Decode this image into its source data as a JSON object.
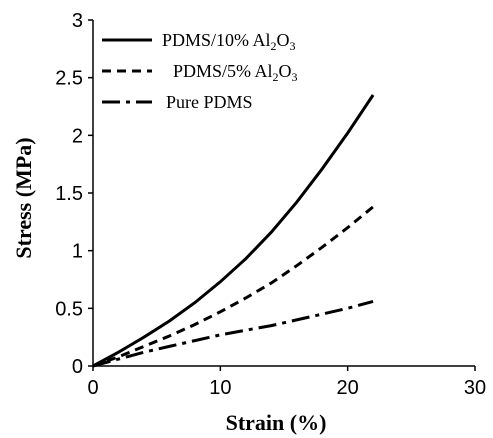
{
  "chart_data": {
    "type": "line",
    "title": "",
    "xlabel": "Strain (%)",
    "ylabel": "Stress (MPa)",
    "xlim": [
      0,
      30
    ],
    "ylim": [
      0,
      3
    ],
    "x_ticks": [
      0,
      10,
      20,
      30
    ],
    "y_ticks": [
      0,
      0.5,
      1,
      1.5,
      2,
      2.5,
      3
    ],
    "x_tick_labels": [
      "0",
      "10",
      "20",
      "30"
    ],
    "y_tick_labels": [
      "0",
      "0.5",
      "1",
      "1.5",
      "2",
      "2.5",
      "3"
    ],
    "grid": false,
    "legend_position": "top-left",
    "series": [
      {
        "name": "PDMS/10% Al2O3",
        "legend": {
          "prefix": "PDMS/10% Al",
          "sub1": "2",
          "mid": "O",
          "sub2": "3"
        },
        "style": "solid",
        "color": "#000000",
        "x": [
          0,
          2,
          4,
          6,
          8,
          10,
          12,
          14,
          16,
          18,
          20,
          22
        ],
        "y": [
          0,
          0.12,
          0.25,
          0.39,
          0.55,
          0.73,
          0.93,
          1.16,
          1.42,
          1.71,
          2.02,
          2.35
        ]
      },
      {
        "name": "PDMS/5% Al2O3",
        "legend": {
          "prefix": "PDMS/5% Al",
          "sub1": "2",
          "mid": "O",
          "sub2": "3"
        },
        "style": "dashed",
        "color": "#000000",
        "x": [
          0,
          2,
          4,
          6,
          8,
          10,
          12,
          14,
          16,
          18,
          20,
          22
        ],
        "y": [
          0,
          0.08,
          0.17,
          0.26,
          0.36,
          0.47,
          0.59,
          0.72,
          0.87,
          1.03,
          1.2,
          1.38
        ]
      },
      {
        "name": "Pure PDMS",
        "legend": {
          "prefix": "Pure PDMS",
          "sub1": "",
          "mid": "",
          "sub2": ""
        },
        "style": "dashdot",
        "color": "#000000",
        "x": [
          0,
          2,
          4,
          6,
          8,
          10,
          12,
          14,
          16,
          18,
          20,
          22
        ],
        "y": [
          0,
          0.06,
          0.12,
          0.17,
          0.22,
          0.27,
          0.31,
          0.35,
          0.4,
          0.45,
          0.5,
          0.56
        ]
      }
    ]
  }
}
